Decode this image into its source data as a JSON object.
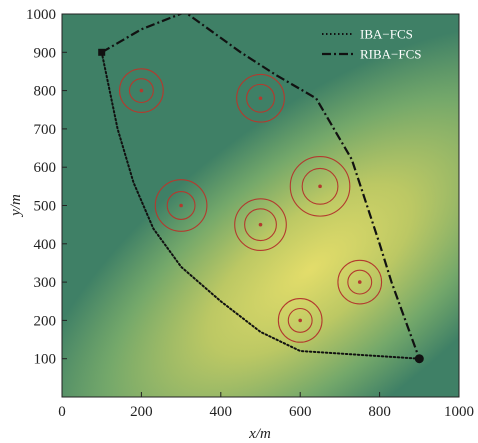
{
  "chart_data": {
    "type": "line",
    "xlabel": "x/m",
    "ylabel": "y/m",
    "xlim": [
      0,
      1000
    ],
    "ylim": [
      0,
      1000
    ],
    "xticks": [
      "0",
      "200",
      "400",
      "600",
      "800",
      "1000"
    ],
    "yticks": [
      "100",
      "200",
      "300",
      "400",
      "500",
      "600",
      "700",
      "800",
      "900",
      "1000"
    ],
    "grid": false,
    "legend_position": "top-right",
    "background": "green-yellow gradient field",
    "series": [
      {
        "name": "IBA−FCS",
        "style": "dotted",
        "color": "#111111",
        "points": [
          [
            100,
            900
          ],
          [
            140,
            700
          ],
          [
            180,
            560
          ],
          [
            230,
            440
          ],
          [
            300,
            340
          ],
          [
            400,
            250
          ],
          [
            500,
            170
          ],
          [
            600,
            120
          ],
          [
            900,
            100
          ]
        ]
      },
      {
        "name": "RIBA−FCS",
        "style": "dash-dot",
        "color": "#111111",
        "points": [
          [
            100,
            900
          ],
          [
            200,
            960
          ],
          [
            310,
            1005
          ],
          [
            450,
            900
          ],
          [
            540,
            840
          ],
          [
            640,
            780
          ],
          [
            730,
            620
          ],
          [
            800,
            400
          ],
          [
            830,
            300
          ],
          [
            900,
            100
          ]
        ]
      }
    ],
    "markers": [
      {
        "shape": "square",
        "x": 100,
        "y": 900,
        "color": "#111111"
      },
      {
        "shape": "circle",
        "x": 900,
        "y": 100,
        "color": "#111111"
      }
    ],
    "targets": [
      {
        "x": 200,
        "y": 800,
        "inner_radius": 30,
        "outer_radius": 55
      },
      {
        "x": 500,
        "y": 780,
        "inner_radius": 35,
        "outer_radius": 60
      },
      {
        "x": 300,
        "y": 500,
        "inner_radius": 35,
        "outer_radius": 65
      },
      {
        "x": 650,
        "y": 550,
        "inner_radius": 45,
        "outer_radius": 75
      },
      {
        "x": 500,
        "y": 450,
        "inner_radius": 40,
        "outer_radius": 65
      },
      {
        "x": 750,
        "y": 300,
        "inner_radius": 30,
        "outer_radius": 55
      },
      {
        "x": 600,
        "y": 200,
        "inner_radius": 30,
        "outer_radius": 55
      }
    ],
    "target_color": "#b33a2e"
  }
}
